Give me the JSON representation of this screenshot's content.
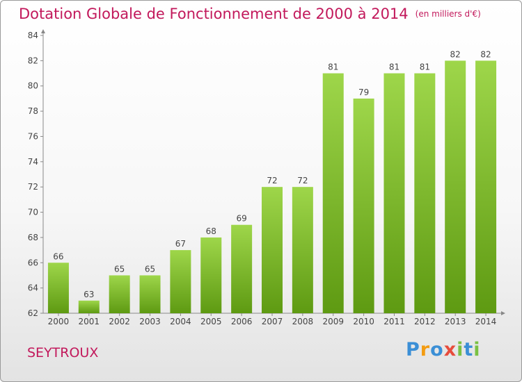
{
  "title": "Dotation Globale de Fonctionnement de 2000 à 2014",
  "subtitle": "(en milliers d'€)",
  "commune": "SEYTROUX",
  "logo": {
    "letters": [
      "P",
      "r",
      "o",
      "x",
      "i",
      "t",
      "i"
    ],
    "colors": [
      "#3b8fd6",
      "#f39c12",
      "#3b8fd6",
      "#e74c3c",
      "#7ac143",
      "#3b8fd6",
      "#7ac143"
    ]
  },
  "colors": {
    "bar_top": "#9ed64a",
    "bar_bottom": "#5e9a12",
    "title": "#c2185b"
  },
  "chart_data": {
    "type": "bar",
    "categories": [
      "2000",
      "2001",
      "2002",
      "2003",
      "2004",
      "2005",
      "2006",
      "2007",
      "2008",
      "2009",
      "2010",
      "2011",
      "2012",
      "2013",
      "2014"
    ],
    "values": [
      66,
      63,
      65,
      65,
      67,
      68,
      69,
      72,
      72,
      81,
      79,
      81,
      81,
      82,
      82
    ],
    "ylim": [
      62,
      84
    ],
    "yticks": [
      62,
      64,
      66,
      68,
      70,
      72,
      74,
      76,
      78,
      80,
      82,
      84
    ],
    "grid": false
  }
}
